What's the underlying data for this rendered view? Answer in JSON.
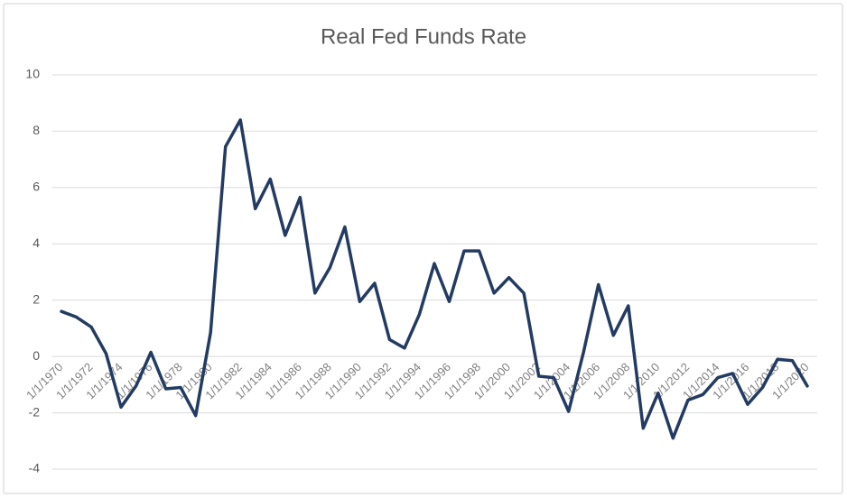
{
  "chart_data": {
    "type": "line",
    "title": "Real Fed Funds Rate",
    "categories": [
      "1/1/1970",
      null,
      "1/1/1972",
      null,
      "1/1/1974",
      null,
      "1/1/1976",
      null,
      "1/1/1978",
      null,
      "1/1/1980",
      null,
      "1/1/1982",
      null,
      "1/1/1984",
      null,
      "1/1/1986",
      null,
      "1/1/1988",
      null,
      "1/1/1990",
      null,
      "1/1/1992",
      null,
      "1/1/1994",
      null,
      "1/1/1996",
      null,
      "1/1/1998",
      null,
      "1/1/2000",
      null,
      "1/1/2002",
      null,
      "1/1/2004",
      null,
      "1/1/2006",
      null,
      "1/1/2008",
      null,
      "1/1/2010",
      null,
      "1/1/2012",
      null,
      "1/1/2014",
      null,
      "1/1/2016",
      null,
      "1/1/2018",
      null,
      "1/1/2020"
    ],
    "series": [
      {
        "name": "Real Fed Funds Rate",
        "color": "#233b63",
        "values": [
          1.6,
          1.4,
          1.05,
          0.1,
          -1.8,
          -1.05,
          0.15,
          -1.15,
          -1.1,
          -2.1,
          0.85,
          7.45,
          8.4,
          5.25,
          6.3,
          4.3,
          5.65,
          2.25,
          3.15,
          4.6,
          1.95,
          2.6,
          0.6,
          0.3,
          1.5,
          3.3,
          1.95,
          3.75,
          3.75,
          2.25,
          2.8,
          2.25,
          -0.7,
          -0.75,
          -1.95,
          0.15,
          2.55,
          0.75,
          1.8,
          -2.55,
          -1.3,
          -2.9,
          -1.55,
          -1.35,
          -0.75,
          -0.6,
          -1.7,
          -1.1,
          -0.1,
          -0.15,
          -1.05
        ]
      }
    ],
    "ylim": [
      -4,
      10
    ],
    "yticks": [
      -4,
      -2,
      0,
      2,
      4,
      6,
      8,
      10
    ],
    "grid": true
  }
}
